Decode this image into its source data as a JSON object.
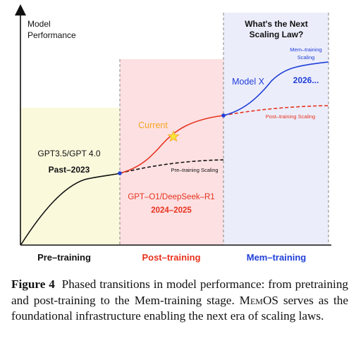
{
  "figure": {
    "y_axis_label_line1": "Model",
    "y_axis_label_line2": "Performance",
    "question_line1": "What's the Next",
    "question_line2": "Scaling Law?",
    "phases": [
      {
        "label": "Pre–training",
        "color": "#111111"
      },
      {
        "label": "Post–training",
        "color": "#e8321e"
      },
      {
        "label": "Mem–training",
        "color": "#1f3fd8"
      }
    ],
    "region_colors": {
      "pretraining": "#fbf9dc",
      "posttraining": "#fde0e2",
      "memtraining": "#ecedfb"
    },
    "pretraining_models": "GPT3.5/GPT 4.0",
    "pretraining_period": "Past–2023",
    "posttraining_models": "GPT–O1/DeepSeek–R1",
    "posttraining_period": "2024–2025",
    "current_label": "Current",
    "current_color": "#f5a623",
    "model_x_label": "Model X",
    "year_label": "2026...",
    "mem_training_scaling_line1": "Mem–training",
    "mem_training_scaling_line2": "Scaling",
    "post_training_scaling_label": "Post–training Scaling",
    "pre_training_scaling_label": "Pre–training Scaling"
  },
  "caption": {
    "label": "Figure 4",
    "part1": "Phased transitions in model performance: from pretraining and post-training to the Mem-training stage. ",
    "memos_name": "MemOS",
    "part2": " serves as the foundational infrastructure enabling the next era of scaling laws."
  }
}
